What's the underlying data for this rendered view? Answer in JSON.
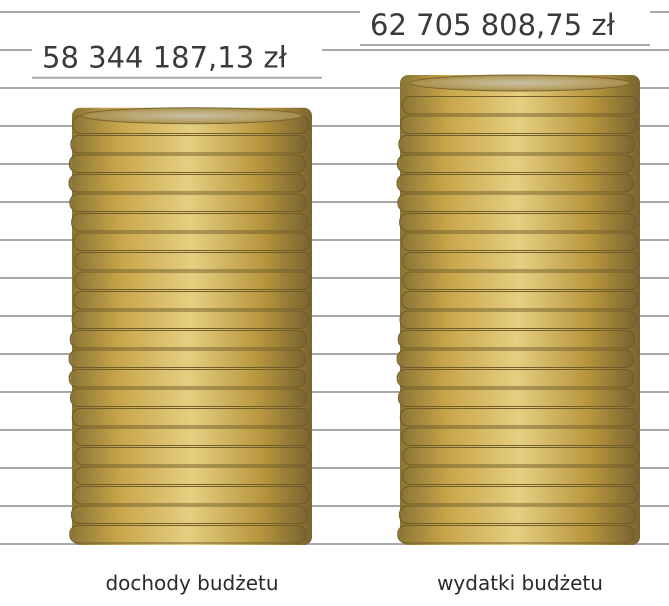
{
  "chart_data": {
    "type": "bar",
    "categories": [
      "dochody budżetu",
      "wydatki budżetu"
    ],
    "values": [
      58344187.13,
      62705808.75
    ],
    "value_labels": [
      "58 344 187,13 zł",
      "62 705 808,75 zł"
    ],
    "color": "#c9a64a"
  }
}
